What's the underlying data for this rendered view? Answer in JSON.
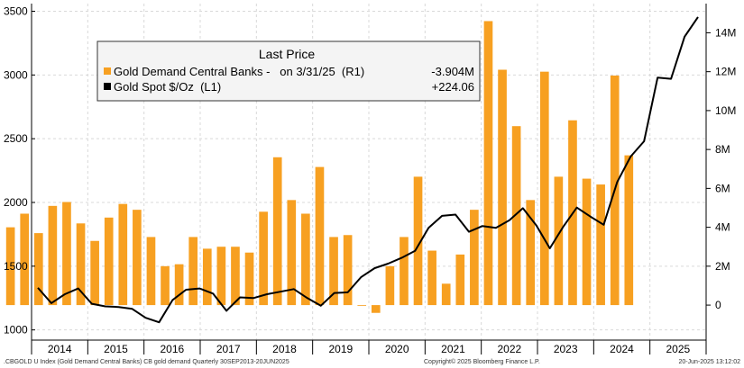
{
  "chart_data": {
    "type": "bar",
    "title": "",
    "x_labels": [
      "2014",
      "2015",
      "2016",
      "2017",
      "2018",
      "2019",
      "2020",
      "2021",
      "2022",
      "2023",
      "2024",
      "2025"
    ],
    "left_axis": {
      "ticks": [
        1000,
        1500,
        2000,
        2500,
        3000,
        3500
      ],
      "tick_labels": [
        "1000",
        "1500",
        "2000",
        "2500",
        "3000",
        "3500"
      ],
      "range": [
        920,
        3560
      ]
    },
    "right_axis": {
      "ticks": [
        0,
        2,
        4,
        6,
        8,
        10,
        12,
        14
      ],
      "tick_labels": [
        "0",
        "2M",
        "4M",
        "6M",
        "8M",
        "10M",
        "12M",
        "14M"
      ],
      "range": [
        -1.8,
        15.5
      ]
    },
    "legend": {
      "title": "Last Price",
      "items": [
        {
          "label": "Gold Demand Central Banks -   on 3/31/25  (R1)",
          "value": "-3.904M",
          "color": "#f7a021",
          "marker": "square"
        },
        {
          "label": "Gold Spot $/Oz  (L1)",
          "value": "+224.06",
          "color": "#000000",
          "marker": "square"
        }
      ]
    },
    "series": [
      {
        "name": "Gold Demand Central Banks",
        "axis": "right",
        "kind": "bar",
        "color": "#f7a021",
        "values": [
          4.0,
          4.7,
          3.7,
          5.1,
          5.3,
          4.2,
          3.3,
          4.5,
          5.2,
          4.9,
          3.5,
          2.0,
          2.1,
          3.5,
          2.9,
          3.0,
          3.0,
          2.7,
          4.8,
          7.6,
          5.4,
          4.7,
          7.1,
          3.5,
          3.6,
          0.0,
          -0.4,
          2.0,
          3.5,
          6.6,
          2.8,
          1.1,
          2.6,
          4.9,
          14.6,
          12.1,
          9.2,
          5.4,
          12.0,
          6.6,
          9.5,
          6.5,
          6.2,
          11.8,
          7.7
        ]
      },
      {
        "name": "Gold Spot $/Oz",
        "axis": "left",
        "kind": "line",
        "color": "#000000",
        "values": [
          1330,
          1210,
          1280,
          1325,
          1205,
          1185,
          1180,
          1165,
          1095,
          1060,
          1235,
          1315,
          1325,
          1285,
          1150,
          1255,
          1250,
          1280,
          1300,
          1320,
          1250,
          1190,
          1290,
          1295,
          1415,
          1485,
          1520,
          1565,
          1620,
          1800,
          1895,
          1905,
          1770,
          1815,
          1800,
          1860,
          1955,
          1820,
          1640,
          1810,
          1960,
          1890,
          1825,
          2160,
          2360,
          2480,
          2980,
          2970,
          3300,
          3455
        ]
      }
    ]
  },
  "footer": {
    "left": ".CBGOLD U Index (Gold Demand Central Banks) CB gold demand  Quarterly 30SEP2013-20JUN2025",
    "center": "Copyright© 2025 Bloomberg Finance L.P.",
    "right": "20-Jun-2025 13:12:02"
  }
}
